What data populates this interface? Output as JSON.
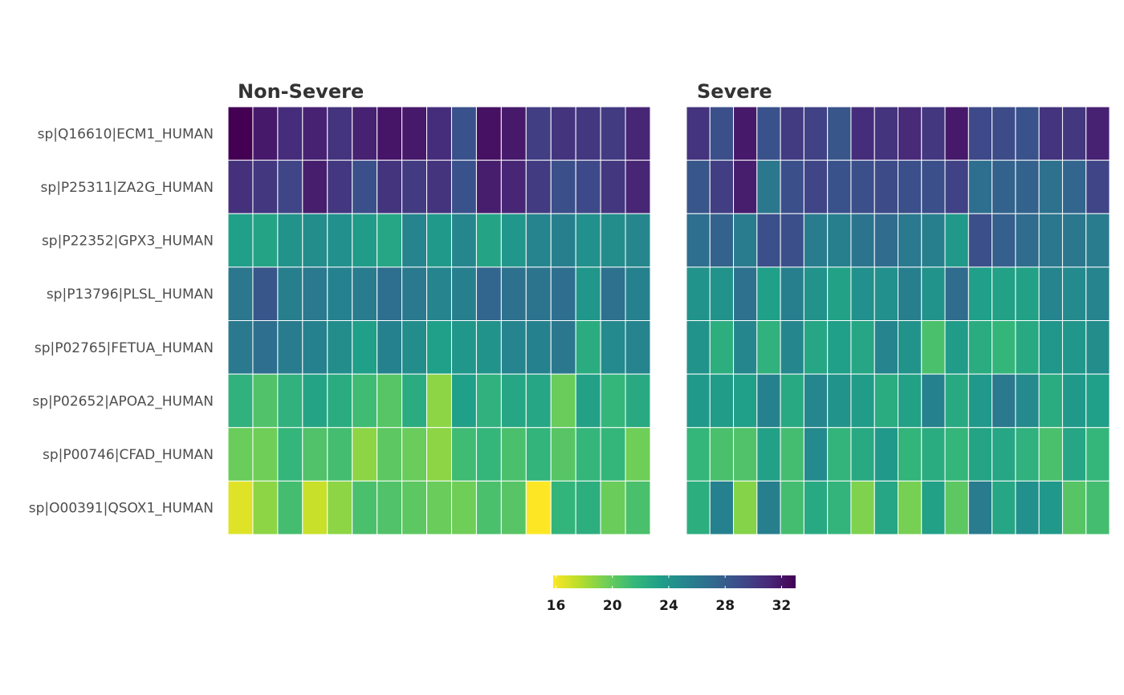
{
  "chart_data": {
    "type": "heatmap",
    "title": "",
    "xlabel": "",
    "ylabel": "",
    "colormap": "viridis (reversed)",
    "panels": [
      "Non-Severe",
      "Severe"
    ],
    "rows": [
      "sp|Q16610|ECM1_HUMAN",
      "sp|P25311|ZA2G_HUMAN",
      "sp|P22352|GPX3_HUMAN",
      "sp|P13796|PLSL_HUMAN",
      "sp|P02765|FETUA_HUMAN",
      "sp|P02652|APOA2_HUMAN",
      "sp|P00746|CFAD_HUMAN",
      "sp|O00391|QSOX1_HUMAN"
    ],
    "values": {
      "Non-Severe": [
        [
          33.0,
          31.8,
          30.8,
          31.4,
          30.4,
          31.4,
          32.0,
          31.8,
          30.8,
          28.6,
          32.2,
          31.8,
          29.8,
          30.4,
          30.2,
          30.0,
          31.2
        ],
        [
          30.6,
          30.2,
          29.4,
          31.6,
          30.2,
          28.8,
          30.4,
          30.0,
          30.4,
          28.6,
          31.6,
          31.2,
          30.0,
          28.8,
          29.2,
          30.2,
          31.2
        ],
        [
          23.4,
          23.0,
          24.2,
          24.6,
          24.4,
          23.6,
          22.8,
          25.2,
          23.8,
          25.0,
          23.0,
          24.0,
          25.2,
          25.6,
          24.4,
          24.6,
          25.0
        ],
        [
          26.2,
          28.4,
          25.6,
          26.0,
          25.4,
          25.8,
          26.8,
          26.0,
          25.2,
          25.6,
          27.4,
          26.6,
          26.4,
          26.8,
          24.0,
          26.6,
          25.4
        ],
        [
          26.0,
          26.8,
          25.8,
          25.4,
          24.6,
          23.4,
          25.4,
          24.6,
          23.4,
          24.0,
          24.2,
          25.2,
          25.4,
          26.2,
          22.4,
          24.8,
          25.2
        ],
        [
          22.0,
          20.6,
          22.0,
          23.0,
          22.4,
          21.2,
          20.4,
          22.4,
          18.8,
          23.4,
          22.0,
          22.8,
          22.8,
          19.8,
          23.2,
          21.6,
          22.6
        ],
        [
          19.8,
          19.6,
          21.6,
          20.6,
          21.0,
          18.8,
          20.2,
          19.8,
          18.8,
          21.2,
          21.6,
          20.8,
          21.8,
          20.4,
          21.6,
          21.6,
          19.6
        ],
        [
          16.6,
          18.8,
          21.0,
          17.2,
          18.8,
          20.8,
          20.6,
          20.2,
          19.8,
          19.6,
          20.8,
          20.4,
          15.8,
          21.8,
          22.2,
          19.8,
          20.8
        ]
      ],
      "Severe": [
        [
          30.4,
          28.8,
          31.8,
          28.6,
          30.0,
          29.6,
          28.4,
          30.8,
          30.4,
          31.0,
          30.2,
          31.8,
          29.2,
          29.0,
          28.6,
          30.4,
          30.2,
          31.4
        ],
        [
          28.4,
          29.8,
          31.6,
          26.2,
          28.8,
          29.4,
          28.6,
          28.8,
          29.0,
          28.8,
          28.8,
          29.6,
          26.8,
          27.6,
          27.6,
          26.6,
          27.4,
          29.4
        ],
        [
          26.8,
          27.6,
          25.8,
          28.8,
          28.8,
          25.8,
          25.6,
          26.4,
          27.0,
          26.0,
          25.6,
          23.8,
          28.8,
          27.8,
          27.0,
          26.2,
          26.2,
          25.8
        ],
        [
          24.2,
          24.2,
          26.6,
          23.4,
          25.6,
          24.2,
          23.2,
          24.4,
          24.4,
          25.6,
          24.2,
          27.0,
          23.4,
          23.2,
          23.2,
          25.2,
          24.8,
          25.2
        ],
        [
          24.2,
          22.2,
          25.0,
          22.0,
          25.0,
          22.8,
          23.4,
          22.8,
          25.2,
          24.2,
          20.8,
          23.6,
          22.4,
          21.6,
          22.6,
          24.0,
          24.0,
          24.6
        ],
        [
          23.8,
          23.6,
          23.4,
          25.4,
          22.6,
          25.0,
          24.2,
          23.6,
          22.4,
          23.2,
          25.4,
          22.6,
          23.8,
          26.0,
          24.8,
          22.4,
          23.8,
          23.4
        ],
        [
          21.6,
          20.8,
          20.6,
          23.2,
          21.0,
          24.8,
          21.8,
          22.6,
          23.8,
          21.8,
          22.4,
          21.6,
          23.0,
          22.8,
          22.0,
          20.8,
          22.8,
          21.6
        ],
        [
          22.2,
          25.4,
          19.0,
          25.6,
          21.0,
          22.6,
          21.8,
          19.2,
          22.8,
          19.4,
          23.2,
          20.2,
          25.8,
          22.8,
          24.4,
          23.8,
          20.4,
          21.0
        ]
      ]
    },
    "color_scale": {
      "min": 15.8,
      "max": 33.0,
      "ticks": [
        "16",
        "20",
        "24",
        "28",
        "32"
      ]
    },
    "legend_position": "bottom"
  }
}
